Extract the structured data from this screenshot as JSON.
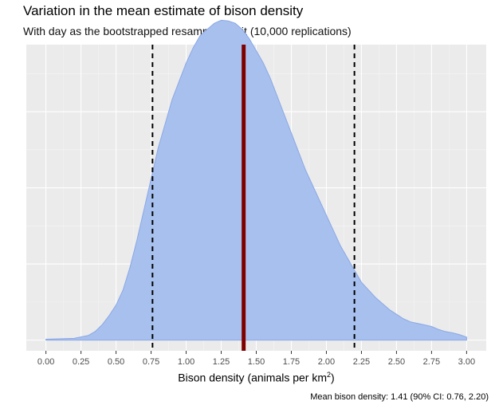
{
  "chart_data": {
    "type": "area",
    "title": "Variation in the mean estimate of bison density",
    "subtitle": "With day as the bootstrapped resampling unit (10,000 replications)",
    "xlabel": {
      "text": "Bison density (animals per km",
      "superscript": "2",
      "suffix": ")"
    },
    "ylabel": "",
    "caption": "Mean bison density: 1.41 (90% CI: 0.76, 2.20)",
    "xlim": [
      -0.14,
      3.14
    ],
    "ylim": [
      -0.035,
      0.97
    ],
    "x_ticks": [
      "0.00",
      "0.25",
      "0.50",
      "0.75",
      "1.00",
      "1.25",
      "1.50",
      "1.75",
      "2.00",
      "2.25",
      "2.50",
      "2.75",
      "3.00"
    ],
    "grid": true,
    "y_ticks_visible": false,
    "density_x": [
      0.0,
      0.2,
      0.3,
      0.35,
      0.4,
      0.45,
      0.5,
      0.55,
      0.6,
      0.65,
      0.7,
      0.75,
      0.8,
      0.85,
      0.9,
      0.95,
      1.0,
      1.05,
      1.1,
      1.15,
      1.2,
      1.25,
      1.3,
      1.35,
      1.4,
      1.45,
      1.5,
      1.55,
      1.6,
      1.65,
      1.7,
      1.75,
      1.8,
      1.85,
      1.9,
      1.95,
      2.0,
      2.05,
      2.1,
      2.15,
      2.2,
      2.25,
      2.3,
      2.35,
      2.4,
      2.45,
      2.5,
      2.55,
      2.6,
      2.65,
      2.7,
      2.75,
      2.8,
      2.85,
      2.9,
      2.95,
      3.0
    ],
    "density_y": [
      0.003,
      0.006,
      0.015,
      0.028,
      0.05,
      0.08,
      0.115,
      0.165,
      0.24,
      0.33,
      0.43,
      0.53,
      0.63,
      0.71,
      0.79,
      0.85,
      0.91,
      0.96,
      1.0,
      1.02,
      1.04,
      1.05,
      1.048,
      1.04,
      1.02,
      0.99,
      0.95,
      0.91,
      0.86,
      0.8,
      0.74,
      0.68,
      0.62,
      0.56,
      0.51,
      0.46,
      0.41,
      0.36,
      0.31,
      0.27,
      0.23,
      0.19,
      0.165,
      0.14,
      0.12,
      0.1,
      0.085,
      0.07,
      0.06,
      0.055,
      0.05,
      0.045,
      0.035,
      0.028,
      0.024,
      0.018,
      0.01
    ],
    "fill_color": "#a8c0ee",
    "stroke_color": "#8aa8e6",
    "mean_line": {
      "x": 1.41,
      "color": "#800000"
    },
    "ci_lines": {
      "values": [
        0.76,
        2.2
      ],
      "color": "#000000",
      "dash": "dashed"
    }
  }
}
